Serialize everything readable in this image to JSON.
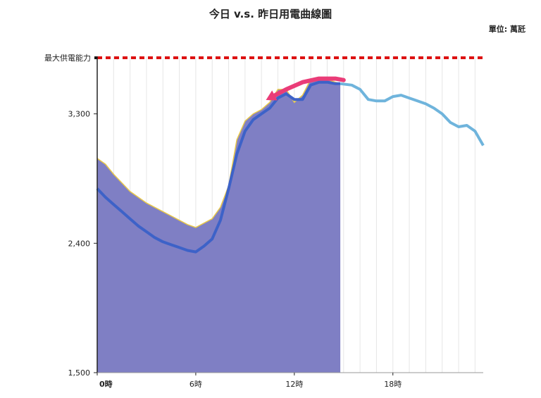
{
  "title": "今日 v.s. 昨日用電曲線圖",
  "unit": "單位: 萬瓩",
  "chart_data": {
    "type": "area",
    "title": "今日 v.s. 昨日用電曲線圖",
    "unit_label": "單位: 萬瓩",
    "xlim": [
      0,
      23.5
    ],
    "ylim": [
      1500,
      3700
    ],
    "x_ticks": [
      {
        "x": 0,
        "label": "0時"
      },
      {
        "x": 6,
        "label": "6時"
      },
      {
        "x": 12,
        "label": "12時"
      },
      {
        "x": 18,
        "label": "18時"
      }
    ],
    "y_ticks": [
      {
        "y": 1500,
        "label": "1,500"
      },
      {
        "y": 2400,
        "label": "2,400"
      },
      {
        "y": 3300,
        "label": "3,300"
      }
    ],
    "max_supply": {
      "label": "最大供電能力",
      "value": 3690,
      "color": "#dd1111"
    },
    "series": [
      {
        "role": "today-area",
        "color": "#7f7fc4",
        "edge": "#e8c84a",
        "x": [
          0,
          0.5,
          1,
          1.5,
          2,
          2.5,
          3,
          3.5,
          4,
          4.5,
          5,
          5.5,
          6,
          6.5,
          7,
          7.5,
          8,
          8.5,
          9,
          9.5,
          10,
          10.5,
          11,
          11.5,
          12,
          12.5,
          13,
          13.5,
          14,
          14.5,
          14.8
        ],
        "y": [
          2990,
          2950,
          2880,
          2820,
          2760,
          2720,
          2680,
          2650,
          2620,
          2590,
          2560,
          2530,
          2510,
          2540,
          2570,
          2650,
          2800,
          3120,
          3250,
          3300,
          3330,
          3380,
          3470,
          3470,
          3380,
          3430,
          3540,
          3550,
          3540,
          3520,
          3510
        ]
      },
      {
        "role": "yesterday-line",
        "color": "#3d62c8",
        "x": [
          0,
          0.5,
          1,
          1.5,
          2,
          2.5,
          3,
          3.5,
          4,
          4.5,
          5,
          5.5,
          6,
          6.5,
          7,
          7.5,
          8,
          8.5,
          9,
          9.5,
          10,
          10.5,
          11,
          11.5,
          12,
          12.5,
          13,
          13.5,
          14,
          14.5,
          14.8
        ],
        "y": [
          2780,
          2720,
          2670,
          2620,
          2570,
          2520,
          2480,
          2440,
          2410,
          2390,
          2370,
          2350,
          2340,
          2380,
          2430,
          2560,
          2780,
          3020,
          3180,
          3260,
          3300,
          3340,
          3410,
          3440,
          3400,
          3400,
          3500,
          3520,
          3520,
          3510,
          3510
        ]
      },
      {
        "role": "forecast-line",
        "color": "#6fb4dc",
        "x": [
          14.8,
          15.5,
          16,
          16.5,
          17,
          17.5,
          18,
          18.5,
          19,
          19.5,
          20,
          20.5,
          21,
          21.5,
          22,
          22.5,
          23,
          23.5
        ],
        "y": [
          3510,
          3500,
          3470,
          3400,
          3390,
          3390,
          3420,
          3430,
          3410,
          3390,
          3370,
          3340,
          3300,
          3240,
          3210,
          3220,
          3180,
          3080
        ]
      },
      {
        "role": "trend-arrow",
        "color": "#ea3c78",
        "x": [
          10.5,
          11.5,
          12.5,
          13.5,
          14.5,
          15
        ],
        "y": [
          3410,
          3470,
          3520,
          3545,
          3545,
          3535
        ]
      }
    ]
  }
}
